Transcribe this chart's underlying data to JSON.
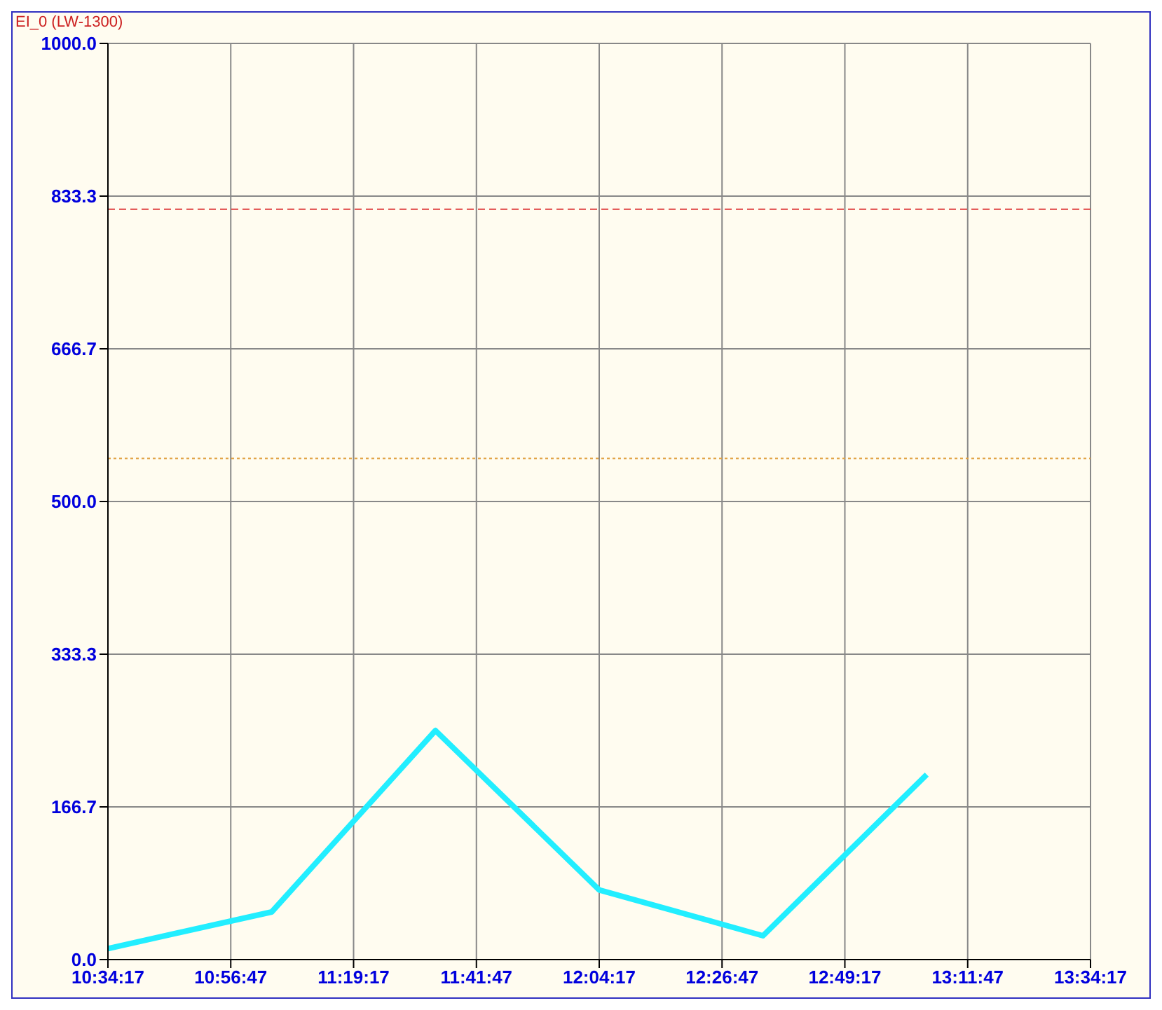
{
  "chart_data": {
    "type": "line",
    "title": "EI_0 (LW-1300)",
    "x": [
      10.571389,
      11.071389,
      11.571389,
      12.071389,
      12.571389,
      13.071389
    ],
    "series": [
      {
        "color": "#22eeff",
        "values": [
          12,
          52,
          250,
          76,
          26,
          202
        ]
      }
    ],
    "xlim": [
      10.571389,
      13.571389
    ],
    "xticks": [
      {
        "value": 10.571389,
        "label": "10:34:17"
      },
      {
        "value": 10.946389,
        "label": "10:56:47"
      },
      {
        "value": 11.321389,
        "label": "11:19:17"
      },
      {
        "value": 11.696389,
        "label": "11:41:47"
      },
      {
        "value": 12.071389,
        "label": "12:04:17"
      },
      {
        "value": 12.446389,
        "label": "12:26:47"
      },
      {
        "value": 12.821389,
        "label": "12:49:17"
      },
      {
        "value": 13.196389,
        "label": "13:11:47"
      },
      {
        "value": 13.571389,
        "label": "13:34:17"
      }
    ],
    "ylim": [
      0,
      1000
    ],
    "yticks": [
      {
        "value": 0,
        "label": "0.0"
      },
      {
        "value": 166.667,
        "label": "166.7"
      },
      {
        "value": 333.333,
        "label": "333.3"
      },
      {
        "value": 500,
        "label": "500.0"
      },
      {
        "value": 666.667,
        "label": "666.7"
      },
      {
        "value": 833.333,
        "label": "833.3"
      },
      {
        "value": 1000,
        "label": "1000.0"
      }
    ],
    "ref_lines": [
      {
        "axis": "y",
        "value": 819,
        "color": "#e04040",
        "line_style": "dashed"
      },
      {
        "axis": "y",
        "value": 547,
        "color": "#e0a040",
        "line_style": "dotted"
      }
    ],
    "grid": true,
    "marker": "none",
    "line_style": "solid"
  }
}
